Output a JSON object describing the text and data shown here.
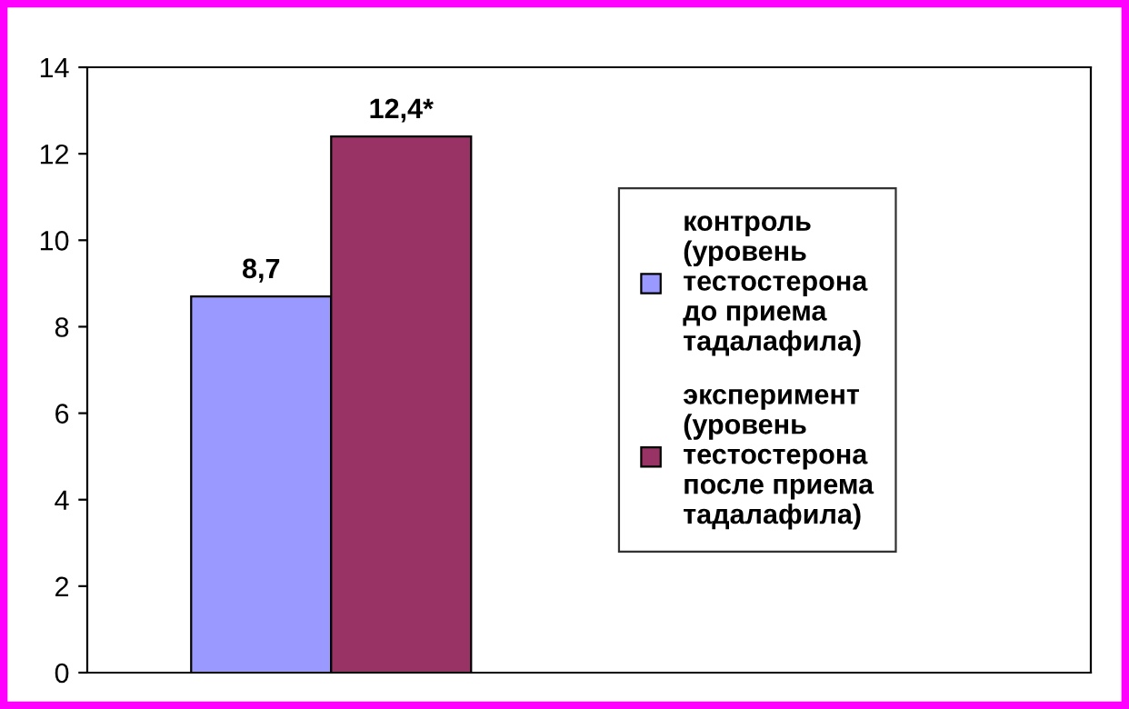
{
  "chart_data": {
    "type": "bar",
    "categories": [
      null
    ],
    "series": [
      {
        "name": "контроль (уровень тестостерона до приема тадалафила)",
        "color": "#9999ff",
        "values": [
          8.7
        ],
        "value_labels": [
          "8,7"
        ]
      },
      {
        "name": "эксперимент (уровень тестостерона после приема тадалафила)",
        "color": "#993366",
        "values": [
          12.4
        ],
        "value_labels": [
          "12,4*"
        ]
      }
    ],
    "ylim": [
      0,
      14
    ],
    "yticks": [
      0,
      2,
      4,
      6,
      8,
      10,
      12,
      14
    ],
    "grid": false,
    "legend": "right"
  }
}
